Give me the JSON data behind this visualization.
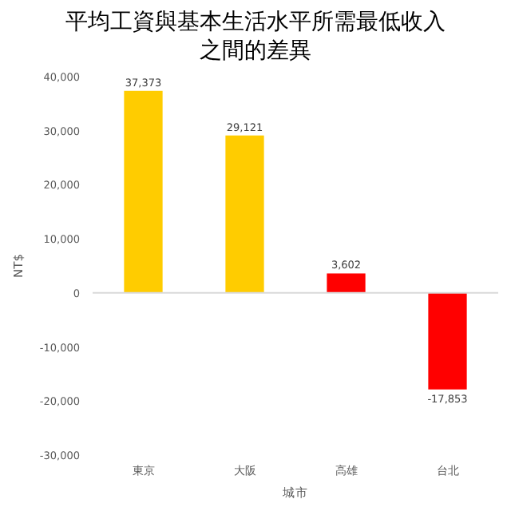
{
  "chart_data": {
    "type": "bar",
    "title": "平均工資與基本生活水平所需最低收入之間的差異",
    "xlabel": "城市",
    "ylabel": "NT$",
    "categories": [
      "東京",
      "大阪",
      "高雄",
      "台北"
    ],
    "values": [
      37373,
      29121,
      3602,
      -17853
    ],
    "colors": [
      "#ffcc00",
      "#ffcc00",
      "#ff0000",
      "#ff0000"
    ],
    "value_labels": [
      "37,373",
      "29,121",
      "3,602",
      "-17,853"
    ],
    "ylim": [
      -30000,
      40000
    ],
    "yticks": [
      {
        "value": -30000,
        "label": "-30,000"
      },
      {
        "value": -20000,
        "label": "-20,000"
      },
      {
        "value": -10000,
        "label": "-10,000"
      },
      0,
      {
        "value": 10000,
        "label": "10,000"
      },
      {
        "value": 20000,
        "label": "20,000"
      },
      {
        "value": 30000,
        "label": "30,000"
      },
      {
        "value": 40000,
        "label": "40,000"
      }
    ]
  }
}
